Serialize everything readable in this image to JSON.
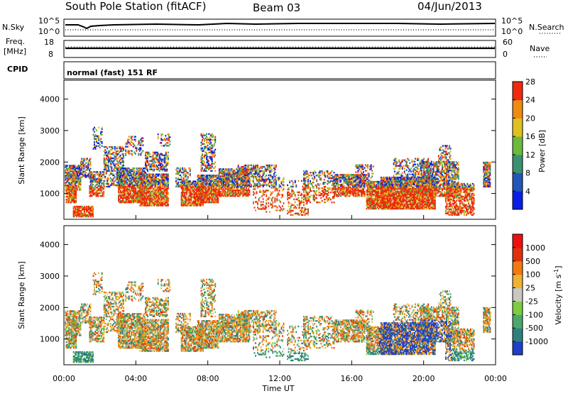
{
  "header": {
    "station": "South Pole Station (fitACF)",
    "beam": "Beam 03",
    "date": "04/Jun/2013"
  },
  "summary_panels": {
    "noise": {
      "left_label": "N.Sky",
      "right_label": "N.Search",
      "left_ticks": [
        "10^5",
        "10^0"
      ],
      "right_ticks": [
        "10^5",
        "10^0"
      ]
    },
    "freq": {
      "left_label_1": "Freq.",
      "left_label_2": "[MHz]",
      "right_label": "Nave",
      "left_ticks": [
        "18",
        "8"
      ],
      "right_ticks": [
        "60",
        "0"
      ]
    },
    "cpid": {
      "label": "CPID",
      "text": "normal (fast) 151 RF"
    }
  },
  "chart_data": [
    {
      "type": "heatmap",
      "name": "power",
      "ylabel": "Slant Range [km]",
      "ylim": [
        180,
        4600
      ],
      "yticks": [
        "1000",
        "2000",
        "3000",
        "4000"
      ],
      "xlim": [
        0,
        24
      ],
      "colorbar_label": "Power [dB]",
      "colorbar_ticks": [
        "4",
        "8",
        "12",
        "16",
        "20",
        "24",
        "28"
      ],
      "colors": [
        "#0a1ee6",
        "#2255b8",
        "#3a9070",
        "#6cba3a",
        "#e0c020",
        "#f08a10",
        "#ee2a10"
      ]
    },
    {
      "type": "heatmap",
      "name": "velocity",
      "ylabel": "Slant Range [km]",
      "ylim": [
        180,
        4600
      ],
      "yticks": [
        "1000",
        "2000",
        "3000",
        "4000"
      ],
      "xlim": [
        0,
        24
      ],
      "xlabel": "Time UT",
      "xticks": [
        "00:00",
        "04:00",
        "08:00",
        "12:00",
        "16:00",
        "20:00",
        "00:00"
      ],
      "colorbar_label": "Velocity [m s",
      "colorbar_label_sup": "-1",
      "colorbar_label_end": "]",
      "colorbar_ticks": [
        "1000",
        "500",
        "100",
        "25",
        "-25",
        "-100",
        "-500",
        "-1000"
      ],
      "colors": [
        "#1f3fc8",
        "#2e8080",
        "#4aa86a",
        "#7ccc40",
        "#c8c8c0",
        "#f0b030",
        "#f07a10",
        "#e0300c",
        "#ee1010"
      ]
    }
  ]
}
